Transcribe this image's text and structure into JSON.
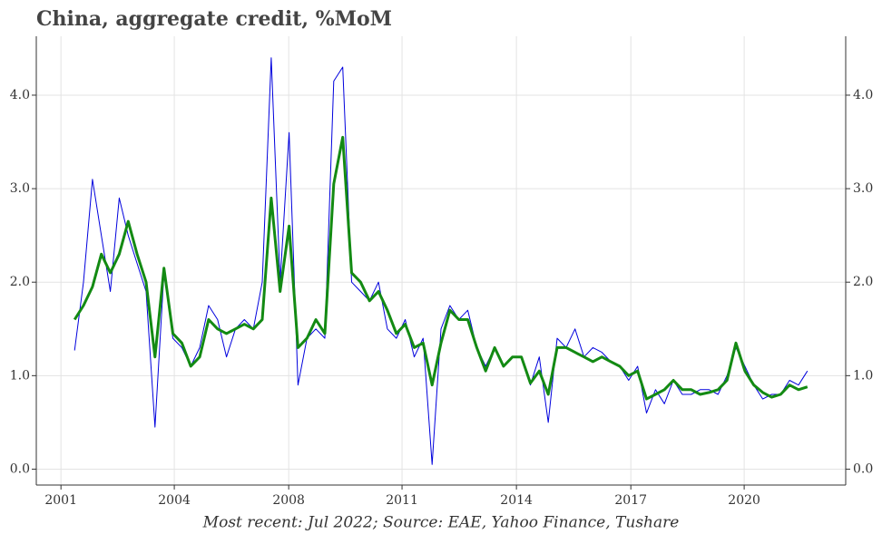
{
  "chart_data": {
    "type": "line",
    "title": "China, aggregate credit, %MoM",
    "note": "Most recent: Jul 2022; Source: EAE, Yahoo Finance, Tushare",
    "grid": true,
    "x": [
      2002.0,
      2002.25,
      2002.5,
      2002.75,
      2003.0,
      2003.25,
      2003.5,
      2003.75,
      2004.0,
      2004.25,
      2004.5,
      2004.75,
      2005.0,
      2005.25,
      2005.5,
      2005.75,
      2006.0,
      2006.25,
      2006.5,
      2006.75,
      2007.0,
      2007.25,
      2007.5,
      2007.75,
      2008.0,
      2008.25,
      2008.5,
      2008.75,
      2009.0,
      2009.25,
      2009.5,
      2009.75,
      2010.0,
      2010.25,
      2010.5,
      2010.75,
      2011.0,
      2011.25,
      2011.5,
      2011.75,
      2012.0,
      2012.25,
      2012.5,
      2012.75,
      2013.0,
      2013.25,
      2013.5,
      2013.75,
      2014.0,
      2014.25,
      2014.5,
      2014.75,
      2015.0,
      2015.25,
      2015.5,
      2015.75,
      2016.0,
      2016.25,
      2016.5,
      2016.75,
      2017.0,
      2017.25,
      2017.5,
      2017.75,
      2018.0,
      2018.25,
      2018.5,
      2018.75,
      2019.0,
      2019.25,
      2019.5,
      2019.75,
      2020.0,
      2020.25,
      2020.5,
      2020.75,
      2021.0,
      2021.25,
      2021.5,
      2021.75,
      2022.0,
      2022.25,
      2022.5
    ],
    "series": [
      {
        "color": "#0000dd",
        "width": 1,
        "values": [
          1.27,
          2.0,
          3.1,
          2.5,
          1.9,
          2.9,
          2.5,
          2.2,
          1.9,
          0.45,
          2.1,
          1.4,
          1.3,
          1.1,
          1.3,
          1.75,
          1.6,
          1.2,
          1.5,
          1.6,
          1.5,
          2.0,
          4.4,
          2.0,
          3.6,
          0.9,
          1.4,
          1.5,
          1.4,
          4.15,
          4.3,
          2.0,
          1.9,
          1.8,
          2.0,
          1.5,
          1.4,
          1.6,
          1.2,
          1.4,
          0.05,
          1.5,
          1.75,
          1.6,
          1.7,
          1.3,
          1.1,
          1.3,
          1.1,
          1.2,
          1.2,
          0.9,
          1.2,
          0.5,
          1.4,
          1.3,
          1.5,
          1.2,
          1.3,
          1.25,
          1.15,
          1.1,
          0.95,
          1.1,
          0.6,
          0.85,
          0.7,
          0.95,
          0.8,
          0.8,
          0.85,
          0.85,
          0.8,
          1.0,
          1.3,
          1.1,
          0.9,
          0.75,
          0.8,
          0.8,
          0.95,
          0.9,
          1.05
        ]
      },
      {
        "color": "#138a13",
        "width": 3,
        "values": [
          1.6,
          1.75,
          1.95,
          2.3,
          2.1,
          2.3,
          2.65,
          2.3,
          2.0,
          1.2,
          2.15,
          1.45,
          1.35,
          1.1,
          1.2,
          1.6,
          1.5,
          1.45,
          1.5,
          1.55,
          1.5,
          1.6,
          2.9,
          1.9,
          2.6,
          1.3,
          1.4,
          1.6,
          1.45,
          3.05,
          3.55,
          2.1,
          2.0,
          1.8,
          1.9,
          1.7,
          1.45,
          1.55,
          1.3,
          1.35,
          0.9,
          1.35,
          1.7,
          1.6,
          1.6,
          1.3,
          1.05,
          1.3,
          1.1,
          1.2,
          1.2,
          0.92,
          1.05,
          0.8,
          1.3,
          1.3,
          1.25,
          1.2,
          1.15,
          1.2,
          1.15,
          1.1,
          1.0,
          1.05,
          0.75,
          0.8,
          0.85,
          0.95,
          0.85,
          0.85,
          0.8,
          0.82,
          0.85,
          0.95,
          1.35,
          1.05,
          0.9,
          0.82,
          0.77,
          0.8,
          0.9,
          0.85,
          0.88
        ]
      }
    ],
    "xlim": [
      2000.93,
      2023.57
    ],
    "xticks": [
      {
        "value": 2001.62,
        "label": "2001"
      },
      {
        "value": 2004.79,
        "label": "2004"
      },
      {
        "value": 2007.99,
        "label": "2008"
      },
      {
        "value": 2011.16,
        "label": "2011"
      },
      {
        "value": 2014.36,
        "label": "2014"
      },
      {
        "value": 2017.56,
        "label": "2017"
      },
      {
        "value": 2020.73,
        "label": "2020"
      }
    ],
    "ylim": [
      -0.17,
      4.63
    ],
    "yticks": [
      {
        "value": 0,
        "label": "0.0"
      },
      {
        "value": 1,
        "label": "1.0"
      },
      {
        "value": 2,
        "label": "2.0"
      },
      {
        "value": 3,
        "label": "3.0"
      },
      {
        "value": 4,
        "label": "4.0"
      }
    ],
    "y2lim": [
      -0.17,
      4.63
    ],
    "y2ticks": [
      {
        "value": 0,
        "label": "0.0"
      },
      {
        "value": 1,
        "label": "1.0"
      },
      {
        "value": 2,
        "label": "2.0"
      },
      {
        "value": 3,
        "label": "3.0"
      },
      {
        "value": 4,
        "label": "4.0"
      }
    ]
  }
}
